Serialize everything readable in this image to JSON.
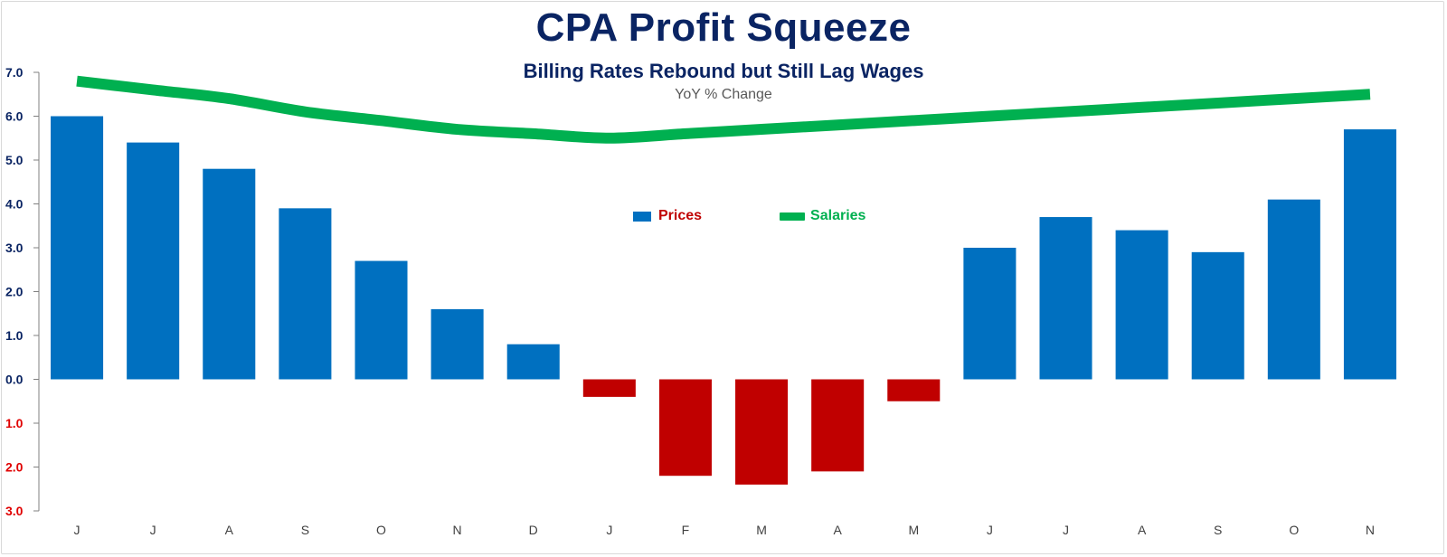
{
  "title": "CPA Profit Squeeze",
  "subtitle": "Billing Rates Rebound but Still Lag Wages",
  "subsubtitle": "YoY % Change",
  "legend": {
    "prices_label": "Prices",
    "salaries_label": "Salaries"
  },
  "colors": {
    "positive_bar": "#0070c0",
    "negative_bar": "#c00000",
    "line": "#00b050",
    "positive_tick": "#0a2463",
    "negative_tick": "#e00000"
  },
  "chart_data": {
    "type": "bar+line",
    "title": "CPA Profit Squeeze",
    "ylim": [
      -3,
      7
    ],
    "y_ticks": [
      {
        "value": 7,
        "label": "7.0"
      },
      {
        "value": 6,
        "label": "6.0"
      },
      {
        "value": 5,
        "label": "5.0"
      },
      {
        "value": 4,
        "label": "4.0"
      },
      {
        "value": 3,
        "label": "3.0"
      },
      {
        "value": 2,
        "label": "2.0"
      },
      {
        "value": 1,
        "label": "1.0"
      },
      {
        "value": 0,
        "label": "0.0"
      },
      {
        "value": -1,
        "label": "1.0"
      },
      {
        "value": -2,
        "label": "2.0"
      },
      {
        "value": -3,
        "label": "3.0"
      }
    ],
    "categories": [
      "J",
      "J",
      "A",
      "S",
      "O",
      "N",
      "D",
      "J",
      "F",
      "M",
      "A",
      "M",
      "J",
      "J",
      "A",
      "S",
      "O",
      "N"
    ],
    "series": [
      {
        "name": "Prices",
        "type": "bar",
        "values": [
          6.0,
          5.4,
          4.8,
          3.9,
          2.7,
          1.6,
          0.8,
          -0.4,
          -2.2,
          -2.4,
          -2.1,
          -0.5,
          3.0,
          3.7,
          3.4,
          2.9,
          4.1,
          5.7
        ]
      },
      {
        "name": "Salaries",
        "type": "line",
        "values": [
          6.8,
          6.6,
          6.4,
          6.1,
          5.9,
          5.7,
          5.6,
          5.5,
          5.6,
          5.7,
          5.8,
          5.9,
          6.0,
          6.1,
          6.2,
          6.3,
          6.4,
          6.5
        ]
      }
    ],
    "legend_position": "center"
  }
}
